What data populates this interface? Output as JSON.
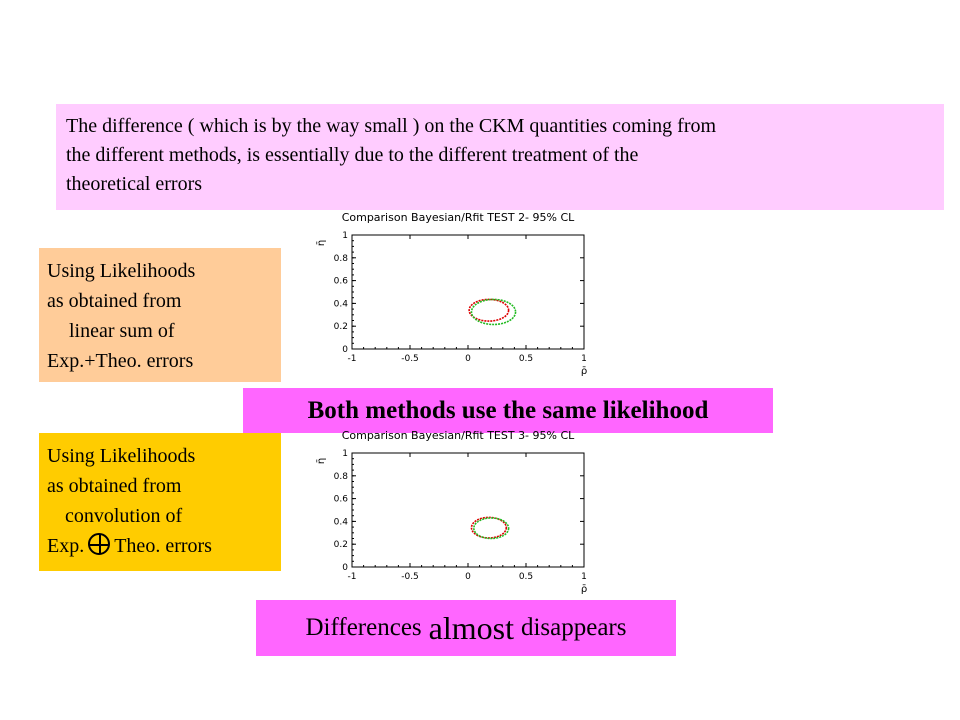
{
  "intro": {
    "line1": "The difference ( which is by the way small ) on the CKM quantities coming from",
    "line2": "the different methods, is essentially due to the different treatment of the",
    "line3": "theoretical errors"
  },
  "box1": {
    "line1": "Using Likelihoods",
    "line2": "as obtained from",
    "line3": "linear sum of",
    "line4": "Exp.+Theo. errors"
  },
  "box2": {
    "line1": "Using Likelihoods",
    "line2": "as obtained from",
    "line3": "convolution of",
    "line4_a": "Exp.",
    "line4_b": "Theo. errors"
  },
  "banner_same": "Both methods use the same likelihood",
  "banner_diff": {
    "part1": "Differences",
    "part2": "almost",
    "part3": "disappears"
  },
  "colors": {
    "bayesian": "#dd0000",
    "rfit": "#22bb22"
  },
  "chart_data": [
    {
      "type": "scatter",
      "title": "Comparison Bayesian/Rfit TEST 2- 95% CL",
      "xlabel": "ρ̄",
      "ylabel": "η̄",
      "xlim": [
        -1,
        1
      ],
      "ylim": [
        0,
        1
      ],
      "xticks": [
        "-1",
        "-0.5",
        "0",
        "0.5",
        "1"
      ],
      "yticks": [
        "0",
        "0.2",
        "0.4",
        "0.6",
        "0.8",
        "1"
      ],
      "series": [
        {
          "color": "#dd0000",
          "center": [
            0.18,
            0.34
          ],
          "radius_x": 0.085,
          "radius_y": 0.095
        },
        {
          "color": "#22bb22",
          "center": [
            0.22,
            0.325
          ],
          "radius_x": 0.095,
          "radius_y": 0.11
        }
      ]
    },
    {
      "type": "scatter",
      "title": "Comparison Bayesian/Rfit TEST 3- 95% CL",
      "xlabel": "ρ̄",
      "ylabel": "η̄",
      "xlim": [
        -1,
        1
      ],
      "ylim": [
        0,
        1
      ],
      "xticks": [
        "-1",
        "-0.5",
        "0",
        "0.5",
        "1"
      ],
      "yticks": [
        "0",
        "0.2",
        "0.4",
        "0.6",
        "0.8",
        "1"
      ],
      "series": [
        {
          "color": "#dd0000",
          "center": [
            0.18,
            0.345
          ],
          "radius_x": 0.075,
          "radius_y": 0.09
        },
        {
          "color": "#22bb22",
          "center": [
            0.2,
            0.34
          ],
          "radius_x": 0.075,
          "radius_y": 0.09
        }
      ]
    }
  ]
}
